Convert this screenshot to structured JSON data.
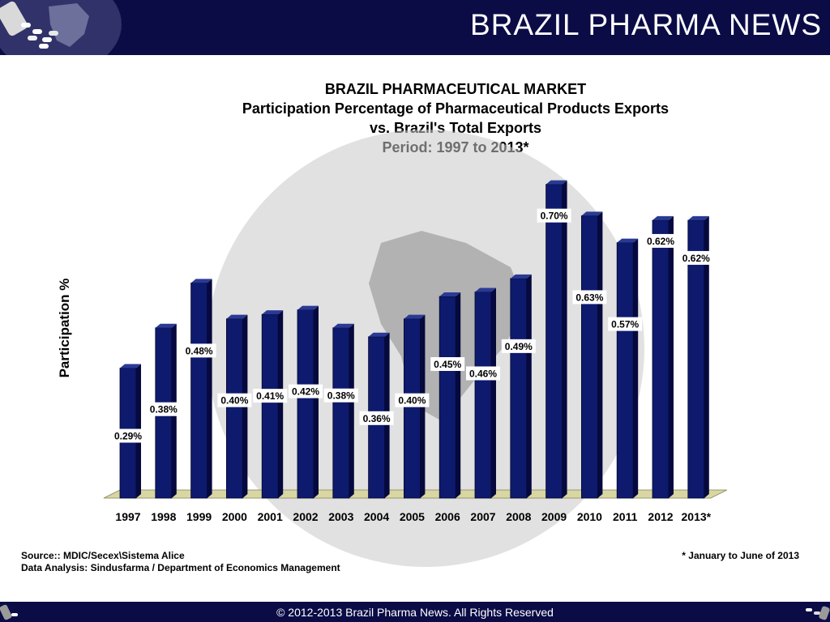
{
  "header": {
    "brand": "BRAZIL PHARMA NEWS"
  },
  "footer": {
    "copyright": "© 2012-2013  Brazil Pharma News. All Rights Reserved"
  },
  "notes": {
    "source": "Source:: MDIC/Secex\\Sistema Alice",
    "analysis": "Data Analysis: Sindusfarma / Department of Economics Management",
    "footnote": "* January to June of 2013"
  },
  "colors": {
    "bar": "#0d1a6e",
    "bar_dark": "#06093d",
    "bar_top": "#2a3a94",
    "floor": "#d8d6a3",
    "header": "#0b0c46",
    "globe": "#c9c9c9"
  },
  "chart_data": {
    "type": "bar",
    "title": "BRAZIL PHARMACEUTICAL MARKET",
    "subtitle": [
      "Participation Percentage of Pharmaceutical Products Exports",
      "vs. Brazil's Total Exports",
      "Period: 1997 to 2013*"
    ],
    "xlabel": "",
    "ylabel": "Participation %",
    "categories": [
      "1997",
      "1998",
      "1999",
      "2000",
      "2001",
      "2002",
      "2003",
      "2004",
      "2005",
      "2006",
      "2007",
      "2008",
      "2009",
      "2010",
      "2011",
      "2012",
      "2013*"
    ],
    "values": [
      0.29,
      0.38,
      0.48,
      0.4,
      0.41,
      0.42,
      0.38,
      0.36,
      0.4,
      0.45,
      0.46,
      0.49,
      0.7,
      0.63,
      0.57,
      0.62,
      0.62
    ],
    "data_labels": [
      "0.29%",
      "0.38%",
      "0.48%",
      "0.40%",
      "0.41%",
      "0.42%",
      "0.38%",
      "0.36%",
      "0.40%",
      "0.45%",
      "0.46%",
      "0.49%",
      "0.70%",
      "0.63%",
      "0.57%",
      "0.62%",
      "0.62%"
    ],
    "ylim": [
      0,
      0.75
    ],
    "grid": false,
    "legend": "none"
  }
}
